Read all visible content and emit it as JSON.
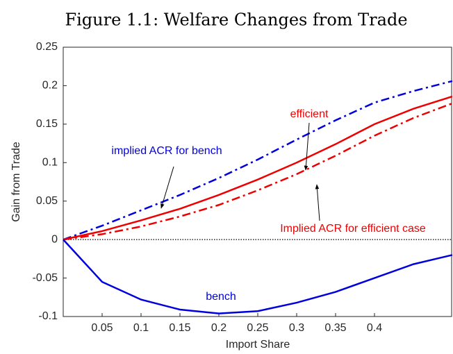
{
  "chart_data": {
    "type": "line",
    "title": "Figure 1.1: Welfare Changes from Trade",
    "xlabel": "Import Share",
    "ylabel": "Gain from Trade",
    "x": [
      0,
      0.05,
      0.1,
      0.15,
      0.2,
      0.25,
      0.3,
      0.35,
      0.4,
      0.45,
      0.5
    ],
    "series": [
      {
        "name": "implied ACR for bench",
        "color": "#0000dd",
        "style": "dashdot",
        "values": [
          0,
          0.018,
          0.038,
          0.058,
          0.08,
          0.104,
          0.13,
          0.155,
          0.178,
          0.193,
          0.206
        ]
      },
      {
        "name": "efficient",
        "color": "#ee0000",
        "style": "solid",
        "values": [
          0,
          0.011,
          0.025,
          0.04,
          0.058,
          0.078,
          0.1,
          0.124,
          0.15,
          0.17,
          0.186
        ]
      },
      {
        "name": "Implied ACR for efficient case",
        "color": "#ee0000",
        "style": "dashdot",
        "values": [
          0,
          0.007,
          0.017,
          0.03,
          0.045,
          0.064,
          0.085,
          0.109,
          0.135,
          0.158,
          0.177
        ]
      },
      {
        "name": "bench",
        "color": "#0000dd",
        "style": "solid",
        "values": [
          0,
          -0.055,
          -0.078,
          -0.091,
          -0.096,
          -0.093,
          -0.082,
          -0.068,
          -0.05,
          -0.032,
          -0.02
        ]
      }
    ],
    "hline": 0,
    "xlim": [
      0,
      0.5
    ],
    "xticks": [
      0.05,
      0.1,
      0.15,
      0.2,
      0.25,
      0.3,
      0.35,
      0.4
    ],
    "ylim": [
      -0.1,
      0.25
    ],
    "yticks": [
      -0.1,
      -0.05,
      0,
      0.05,
      0.1,
      0.15,
      0.2,
      0.25
    ],
    "grid": false
  }
}
